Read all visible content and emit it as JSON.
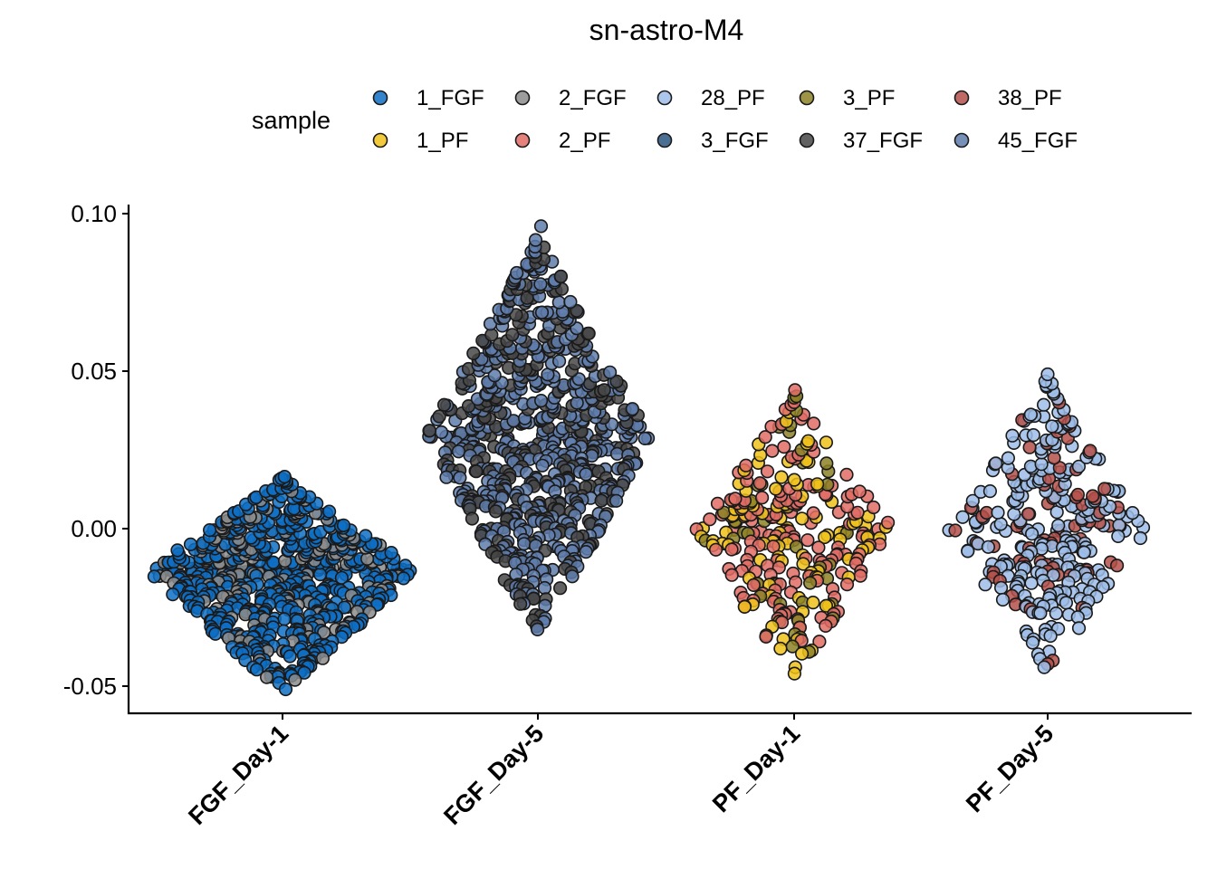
{
  "chart_data": {
    "type": "scatter",
    "subtype": "beeswarm",
    "title": "sn-astro-M4",
    "xlabel": "",
    "ylabel": "",
    "categories": [
      "FGF_Day-1",
      "FGF_Day-5",
      "PF_Day-1",
      "PF_Day-5"
    ],
    "ylim": [
      -0.0575,
      0.103
    ],
    "yticks": [
      -0.05,
      0.0,
      0.05,
      0.1
    ],
    "ytick_labels": [
      "-0.05",
      "0.00",
      "0.05",
      "0.10"
    ],
    "grid": false,
    "legend": {
      "title": "sample",
      "placement": "top",
      "entries": [
        {
          "name": "1_FGF",
          "color": "#0e6fc4"
        },
        {
          "name": "2_FGF",
          "color": "#8c8c8c"
        },
        {
          "name": "28_PF",
          "color": "#9dbde8"
        },
        {
          "name": "3_PF",
          "color": "#8c8126"
        },
        {
          "name": "38_PF",
          "color": "#b5504a"
        },
        {
          "name": "1_PF",
          "color": "#f0c21a"
        },
        {
          "name": "2_PF",
          "color": "#e06c65"
        },
        {
          "name": "3_FGF",
          "color": "#2c5680"
        },
        {
          "name": "37_FGF",
          "color": "#474747"
        },
        {
          "name": "45_FGF",
          "color": "#5f7cab"
        }
      ]
    },
    "groups": [
      {
        "category": "FGF_Day-1",
        "n_points": 700,
        "samples": [
          "1_FGF",
          "2_FGF"
        ],
        "mix": [
          0.75,
          0.25
        ],
        "y_range": [
          -0.051,
          0.017
        ],
        "y_mode": -0.013,
        "notable_points": [
          0.0165,
          0.0145,
          0.011,
          0.008,
          -0.047,
          -0.049,
          -0.051
        ]
      },
      {
        "category": "FGF_Day-5",
        "n_points": 720,
        "samples": [
          "45_FGF",
          "37_FGF"
        ],
        "mix": [
          0.65,
          0.35
        ],
        "y_range": [
          -0.032,
          0.096
        ],
        "y_mode": 0.029,
        "notable_points": [
          0.096,
          0.084,
          0.08,
          0.076,
          -0.031,
          -0.032
        ]
      },
      {
        "category": "PF_Day-1",
        "n_points": 300,
        "samples": [
          "2_PF",
          "1_PF",
          "3_PF"
        ],
        "mix": [
          0.55,
          0.3,
          0.15
        ],
        "y_range": [
          -0.046,
          0.044
        ],
        "y_mode": 0.0,
        "notable_points": [
          0.044,
          0.042,
          -0.044,
          -0.046
        ]
      },
      {
        "category": "PF_Day-5",
        "n_points": 300,
        "samples": [
          "28_PF",
          "38_PF"
        ],
        "mix": [
          0.75,
          0.25
        ],
        "y_range": [
          -0.044,
          0.049
        ],
        "y_mode": 0.0,
        "notable_points": [
          0.049,
          0.046,
          0.045,
          0.04,
          -0.043,
          -0.044
        ]
      }
    ]
  }
}
